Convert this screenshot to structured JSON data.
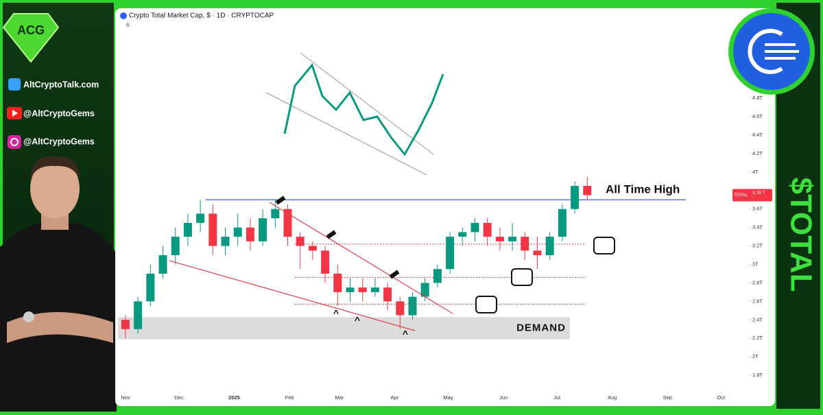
{
  "sidebar": {
    "website": "AltCryptoTalk.com",
    "youtube": "@AltCryptoGems",
    "instagram": "@AltCryptoGems",
    "side_title": "$TOTAL"
  },
  "header": {
    "symbol": "Crypto Total Market Cap, $ · 1D · CRYPTOCAP",
    "indicator_count": "6"
  },
  "chart_data": {
    "type": "candlestick",
    "x": [
      0,
      7,
      14,
      21,
      28,
      35,
      42,
      49,
      56,
      63,
      70,
      77,
      84,
      91,
      98,
      105,
      112,
      119,
      126,
      133,
      140,
      147,
      154,
      161,
      168,
      175,
      182,
      189,
      196,
      203,
      210,
      217,
      224,
      231,
      238,
      245,
      252,
      259
    ],
    "open": [
      2.4,
      2.3,
      2.6,
      2.9,
      3.1,
      3.3,
      3.45,
      3.55,
      3.2,
      3.3,
      3.4,
      3.25,
      3.5,
      3.6,
      3.3,
      3.2,
      3.15,
      2.9,
      2.7,
      2.75,
      2.7,
      2.75,
      2.6,
      2.45,
      2.65,
      2.8,
      2.95,
      3.3,
      3.35,
      3.45,
      3.3,
      3.25,
      3.3,
      3.15,
      3.1,
      3.3,
      3.6,
      3.85
    ],
    "high": [
      2.45,
      2.65,
      3.0,
      3.2,
      3.4,
      3.55,
      3.7,
      3.65,
      3.4,
      3.55,
      3.5,
      3.6,
      3.7,
      3.65,
      3.35,
      3.25,
      3.2,
      3.0,
      2.85,
      2.85,
      2.85,
      2.8,
      2.65,
      2.7,
      2.85,
      3.0,
      3.35,
      3.4,
      3.5,
      3.5,
      3.4,
      3.45,
      3.35,
      3.3,
      3.35,
      3.65,
      3.9,
      3.95
    ],
    "low": [
      2.2,
      2.25,
      2.55,
      2.85,
      3.0,
      3.2,
      3.35,
      3.1,
      3.1,
      3.2,
      3.15,
      3.2,
      3.4,
      3.2,
      2.95,
      3.05,
      2.8,
      2.55,
      2.6,
      2.6,
      2.65,
      2.5,
      2.3,
      2.4,
      2.6,
      2.75,
      2.9,
      3.2,
      3.25,
      3.2,
      3.15,
      3.15,
      3.05,
      2.95,
      3.05,
      3.25,
      3.55,
      3.7
    ],
    "close": [
      2.3,
      2.6,
      2.9,
      3.1,
      3.3,
      3.45,
      3.55,
      3.2,
      3.3,
      3.4,
      3.25,
      3.5,
      3.6,
      3.3,
      3.2,
      3.15,
      2.9,
      2.7,
      2.75,
      2.7,
      2.75,
      2.6,
      2.45,
      2.65,
      2.8,
      2.95,
      3.3,
      3.35,
      3.45,
      3.3,
      3.25,
      3.3,
      3.15,
      3.1,
      3.3,
      3.6,
      3.85,
      3.75
    ],
    "up_color": "#089981",
    "down_color": "#f23645",
    "xlim": [
      -4.2,
      348.9
    ],
    "xticks": [
      {
        "value": 0,
        "label": "Nov"
      },
      {
        "value": 30,
        "label": "Dec"
      },
      {
        "value": 61,
        "label": "2025"
      },
      {
        "value": 92,
        "label": "Feb"
      },
      {
        "value": 120,
        "label": "Mar"
      },
      {
        "value": 151,
        "label": "Apr"
      },
      {
        "value": 181,
        "label": "May"
      },
      {
        "value": 212,
        "label": "Jun"
      },
      {
        "value": 242,
        "label": "Jul"
      },
      {
        "value": 273,
        "label": "Aug"
      },
      {
        "value": 304,
        "label": "Sep"
      },
      {
        "value": 334,
        "label": "Oct"
      }
    ],
    "ylim": [
      1.63,
      5.64
    ],
    "yticks": [
      {
        "value": 1.8,
        "label": "1.8T"
      },
      {
        "value": 2,
        "label": "2T"
      },
      {
        "value": 2.2,
        "label": "2.2T"
      },
      {
        "value": 2.4,
        "label": "2.4T"
      },
      {
        "value": 2.6,
        "label": "2.6T"
      },
      {
        "value": 2.8,
        "label": "2.8T"
      },
      {
        "value": 3,
        "label": "3T"
      },
      {
        "value": 3.2,
        "label": "3.2T"
      },
      {
        "value": 3.4,
        "label": "3.4T"
      },
      {
        "value": 3.6,
        "label": "3.6T"
      },
      {
        "value": 4,
        "label": "4T"
      },
      {
        "value": 4.2,
        "label": "4.2T"
      },
      {
        "value": 4.4,
        "label": "4.4T"
      },
      {
        "value": 4.6,
        "label": "4.6T"
      },
      {
        "value": 4.8,
        "label": "4.8T"
      }
    ],
    "levels": [
      {
        "value": 3.7,
        "color": "#2962ff"
      },
      {
        "value": 3.22,
        "color": "#e04050"
      },
      {
        "value": 2.86,
        "color": "#e04050"
      },
      {
        "value": 2.57,
        "color": "#e04050"
      }
    ],
    "zone": {
      "from": 2.19,
      "to": 2.43,
      "label": "DEMAND"
    },
    "ath_label": "All Time High",
    "price_tag": [
      "TOTAL",
      "3.78 T"
    ]
  }
}
